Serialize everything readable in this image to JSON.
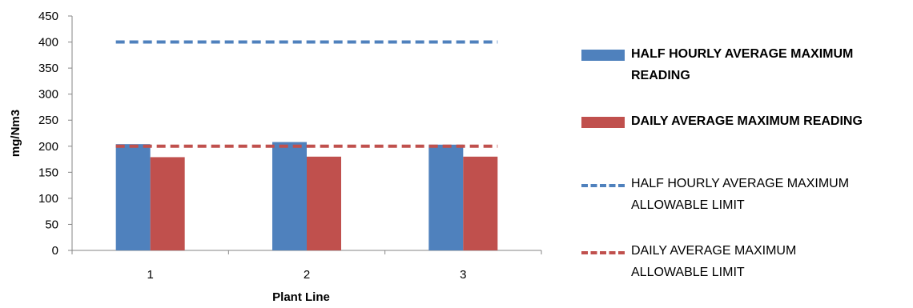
{
  "chart_data": {
    "type": "bar",
    "categories": [
      "1",
      "2",
      "3"
    ],
    "series": [
      {
        "name": "HALF HOURLY AVERAGE MAXIMUM READING",
        "values": [
          204,
          208,
          203
        ],
        "color": "#4f81bd"
      },
      {
        "name": "DAILY AVERAGE MAXIMUM READING",
        "values": [
          179,
          180,
          180
        ],
        "color": "#c0504d"
      }
    ],
    "limits": [
      {
        "name": "HALF HOURLY AVERAGE MAXIMUM ALLOWABLE LIMIT",
        "value": 400,
        "color": "#4f81bd",
        "style": "dashed"
      },
      {
        "name": "DAILY AVERAGE MAXIMUM ALLOWABLE LIMIT",
        "value": 200,
        "color": "#c0504d",
        "style": "dashed"
      }
    ],
    "title": "",
    "xlabel": "Plant Line",
    "ylabel": "mg/Nm3",
    "ylim": [
      0,
      450
    ],
    "yticks": [
      0,
      50,
      100,
      150,
      200,
      250,
      300,
      350,
      400,
      450
    ],
    "grid": false,
    "legend_position": "right"
  }
}
